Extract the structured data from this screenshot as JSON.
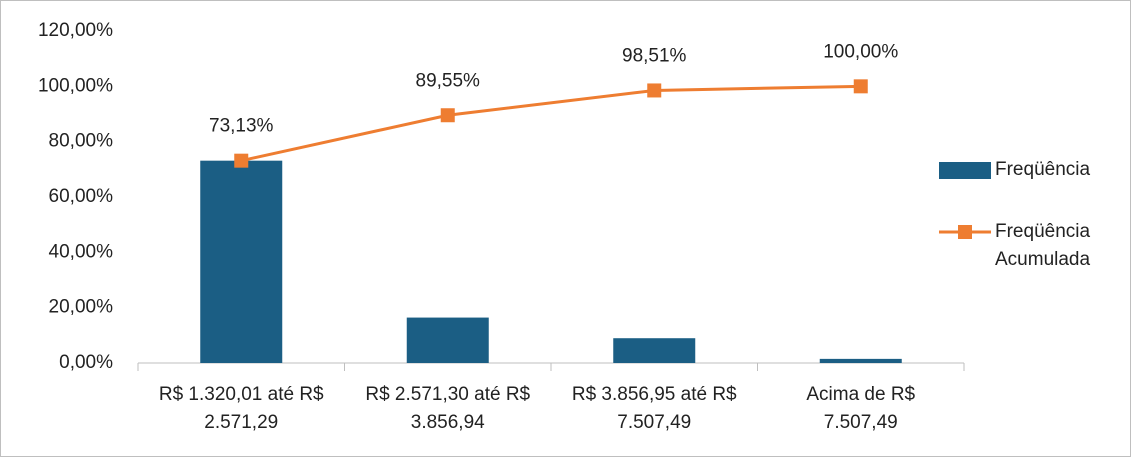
{
  "chart_data": {
    "type": "combo",
    "categories": [
      "R$ 1.320,01 até R$ 2.571,29",
      "R$ 2.571,30 até R$ 3.856,94",
      "R$ 3.856,95 até R$ 7.507,49",
      "Acima de R$ 7.507,49"
    ],
    "series": [
      {
        "name": "Freqüência",
        "type": "bar",
        "color": "#1b5e84",
        "values": [
          73.13,
          16.42,
          8.96,
          1.49
        ]
      },
      {
        "name": "Freqüência Acumulada",
        "type": "line",
        "color": "#ee7d31",
        "values": [
          73.13,
          89.55,
          98.51,
          100
        ],
        "value_labels": [
          "73,13%",
          "89,55%",
          "98,51%",
          "100,00%"
        ]
      }
    ],
    "ylim": [
      0,
      120
    ],
    "yticks": [
      {
        "value": 0,
        "label": "0,00%"
      },
      {
        "value": 20,
        "label": "20,00%"
      },
      {
        "value": 40,
        "label": "40,00%"
      },
      {
        "value": 60,
        "label": "60,00%"
      },
      {
        "value": 80,
        "label": "80,00%"
      },
      {
        "value": 100,
        "label": "100,00%"
      },
      {
        "value": 120,
        "label": "120,00%"
      }
    ],
    "grid": false,
    "legend": "right"
  }
}
